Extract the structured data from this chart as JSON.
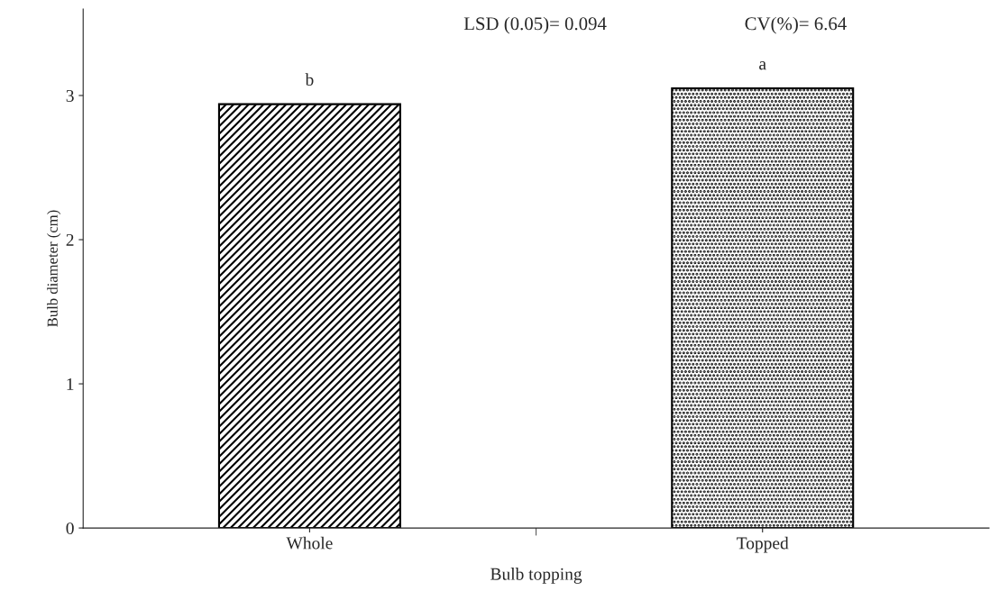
{
  "chart_data": {
    "type": "bar",
    "xlabel": "Bulb topping",
    "ylabel": "Bulb diameter (cm)",
    "categories": [
      "Whole",
      "Topped"
    ],
    "values": [
      2.94,
      3.05
    ],
    "colors": [
      "#000000",
      "#000000"
    ],
    "ylim": [
      0,
      3.6
    ],
    "yticks": [
      0,
      1,
      2,
      3
    ],
    "grid": false,
    "annotations": [
      {
        "text": "b",
        "x": "Whole",
        "y": 2.94
      },
      {
        "text": "a",
        "x": "Topped",
        "y": 3.05
      },
      "LSD (0.05)= 0.094",
      "CV(%)= 6.64"
    ]
  }
}
